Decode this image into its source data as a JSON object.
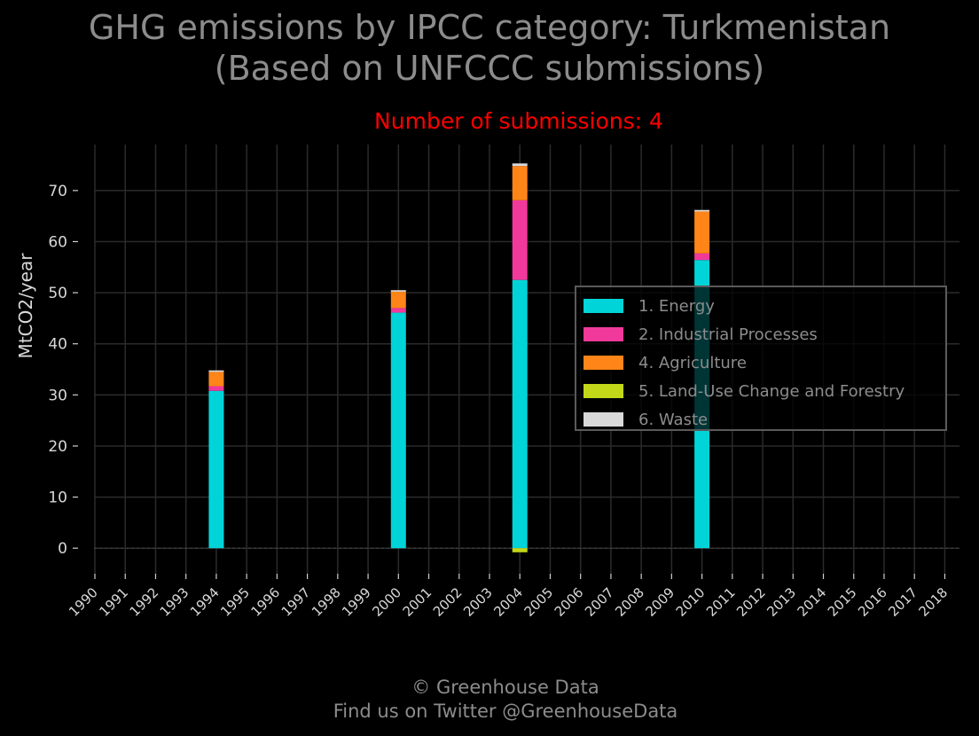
{
  "header": {
    "title_line1": "GHG emissions by IPCC category: Turkmenistan",
    "title_line2": "(Based on UNFCCC submissions)",
    "subtitle": "Number of submissions: 4"
  },
  "footer": {
    "line1": "© Greenhouse Data",
    "line2": "Find us on Twitter @GreenhouseData"
  },
  "chart_data": {
    "type": "bar",
    "stacked": true,
    "title": "GHG emissions by IPCC category: Turkmenistan (Based on UNFCCC submissions)",
    "subtitle": "Number of submissions: 4",
    "xlabel": "",
    "ylabel": "MtCO2/year",
    "ylim": [
      -5,
      79
    ],
    "yticks": [
      0,
      10,
      20,
      30,
      40,
      50,
      60,
      70
    ],
    "categories": [
      "1990",
      "1991",
      "1992",
      "1993",
      "1994",
      "1995",
      "1996",
      "1997",
      "1998",
      "1999",
      "2000",
      "2001",
      "2002",
      "2003",
      "2004",
      "2005",
      "2006",
      "2007",
      "2008",
      "2009",
      "2010",
      "2011",
      "2012",
      "2013",
      "2014",
      "2015",
      "2016",
      "2017",
      "2018"
    ],
    "grid": true,
    "legend_position": "center-right",
    "series": [
      {
        "name": "1. Energy",
        "color": "#00d4d8",
        "values": [
          0,
          0,
          0,
          0,
          30.8,
          0,
          0,
          0,
          0,
          0,
          46.1,
          0,
          0,
          0,
          52.5,
          0,
          0,
          0,
          0,
          0,
          56.4,
          0,
          0,
          0,
          0,
          0,
          0,
          0,
          0
        ]
      },
      {
        "name": "2. Industrial Processes",
        "color": "#f0399b",
        "values": [
          0,
          0,
          0,
          0,
          0.9,
          0,
          0,
          0,
          0,
          0,
          0.9,
          0,
          0,
          0,
          15.6,
          0,
          0,
          0,
          0,
          0,
          1.3,
          0,
          0,
          0,
          0,
          0,
          0,
          0,
          0
        ]
      },
      {
        "name": "4. Agriculture",
        "color": "#ff8518",
        "values": [
          0,
          0,
          0,
          0,
          2.8,
          0,
          0,
          0,
          0,
          0,
          3.2,
          0,
          0,
          0,
          6.7,
          0,
          0,
          0,
          0,
          0,
          8.2,
          0,
          0,
          0,
          0,
          0,
          0,
          0,
          0
        ]
      },
      {
        "name": "5. Land-Use Change and Forestry",
        "color": "#c4d81a",
        "values": [
          0,
          0,
          0,
          0,
          0,
          0,
          0,
          0,
          0,
          0,
          0,
          0,
          0,
          0,
          -0.8,
          0,
          0,
          0,
          0,
          0,
          0,
          0,
          0,
          0,
          0,
          0,
          0,
          0,
          0
        ]
      },
      {
        "name": "6. Waste",
        "color": "#d9d9d9",
        "values": [
          0,
          0,
          0,
          0,
          0.3,
          0,
          0,
          0,
          0,
          0,
          0.3,
          0,
          0,
          0,
          0.5,
          0,
          0,
          0,
          0,
          0,
          0.3,
          0,
          0,
          0,
          0,
          0,
          0,
          0,
          0
        ]
      }
    ]
  }
}
